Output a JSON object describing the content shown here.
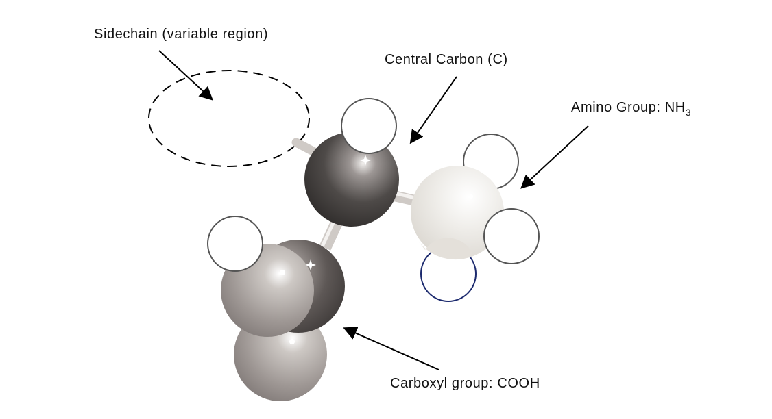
{
  "labels": {
    "sidechain": "Sidechain (variable region)",
    "central_carbon": "Central Carbon (C)",
    "amino_group_prefix": "Amino Group: NH",
    "amino_group_subscript": "3",
    "carboxyl_group": "Carboxyl group: COOH"
  },
  "colors": {
    "carbon_dark": "#3a3838",
    "carbon_light": "#8a8280",
    "nitrogen": "#e9e6e0",
    "oxygen": "#9a928f",
    "hydrogen": "#ffffff",
    "bond": "#d9d5d2",
    "outline_blue": "#1c2a6e"
  }
}
